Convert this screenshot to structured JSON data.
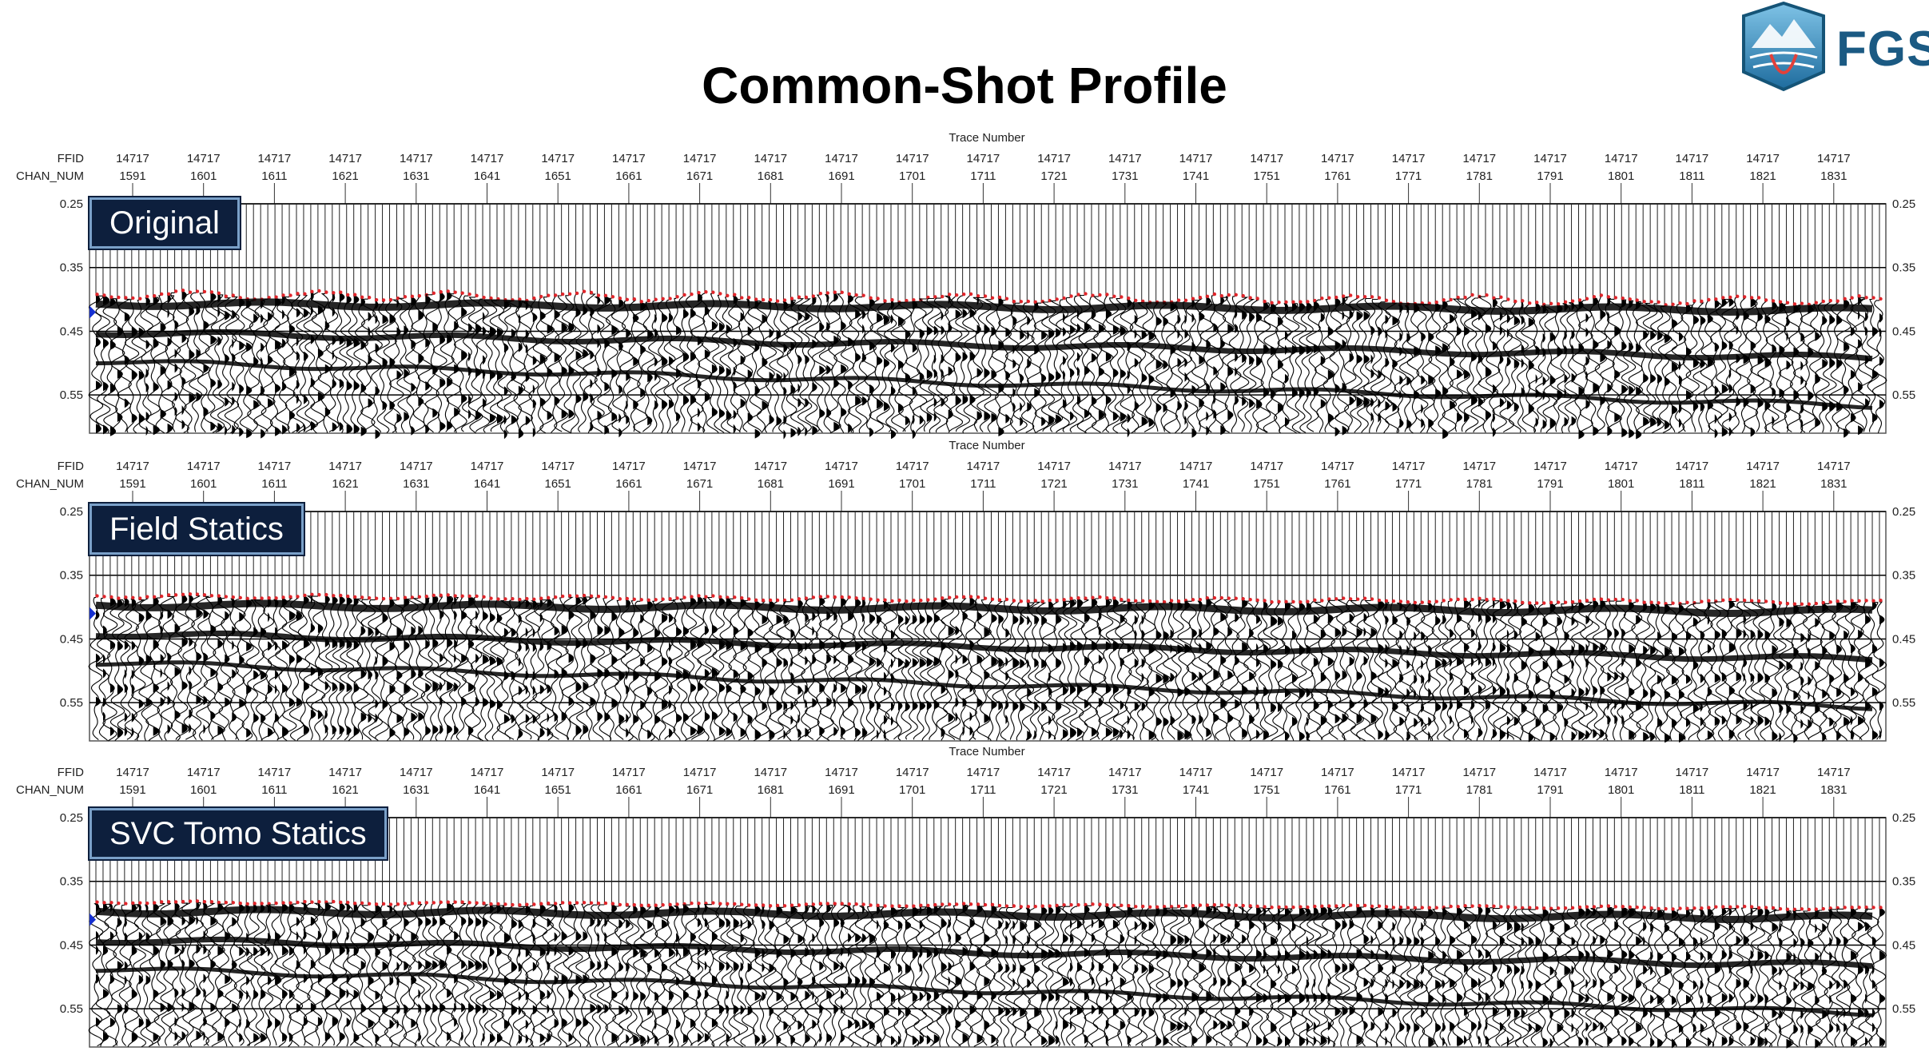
{
  "title": "Common-Shot Profile",
  "logo": {
    "text": "FGS",
    "icon": "fgs-mountain-globe-logo",
    "color": "#1b5a83"
  },
  "chart_data": {
    "type": "seismic-wiggle-trace",
    "header": {
      "axis_title": "Trace Number",
      "row1_label": "FFID",
      "row2_label": "CHAN_NUM",
      "ffid": "14717",
      "chan_ticks": [
        "1591",
        "1601",
        "1611",
        "1621",
        "1631",
        "1641",
        "1651",
        "1661",
        "1671",
        "1681",
        "1691",
        "1701",
        "1711",
        "1721",
        "1731",
        "1741",
        "1751",
        "1761",
        "1771",
        "1781",
        "1791",
        "1801",
        "1811",
        "1821",
        "1831"
      ]
    },
    "time_axis": {
      "ticks": [
        "0.25",
        "0.35",
        "0.45",
        "0.55"
      ],
      "range": [
        0.25,
        0.61
      ]
    },
    "first_break_pick_color": "#e0262b",
    "panels": [
      {
        "label": "Original",
        "first_break_start": 0.395,
        "first_break_end": 0.405,
        "wobble": 1.0
      },
      {
        "label": "Field Statics",
        "first_break_start": 0.385,
        "first_break_end": 0.395,
        "wobble": 0.5
      },
      {
        "label": "SVC Tomo Statics",
        "first_break_start": 0.385,
        "first_break_end": 0.395,
        "wobble": 0.3
      }
    ]
  }
}
